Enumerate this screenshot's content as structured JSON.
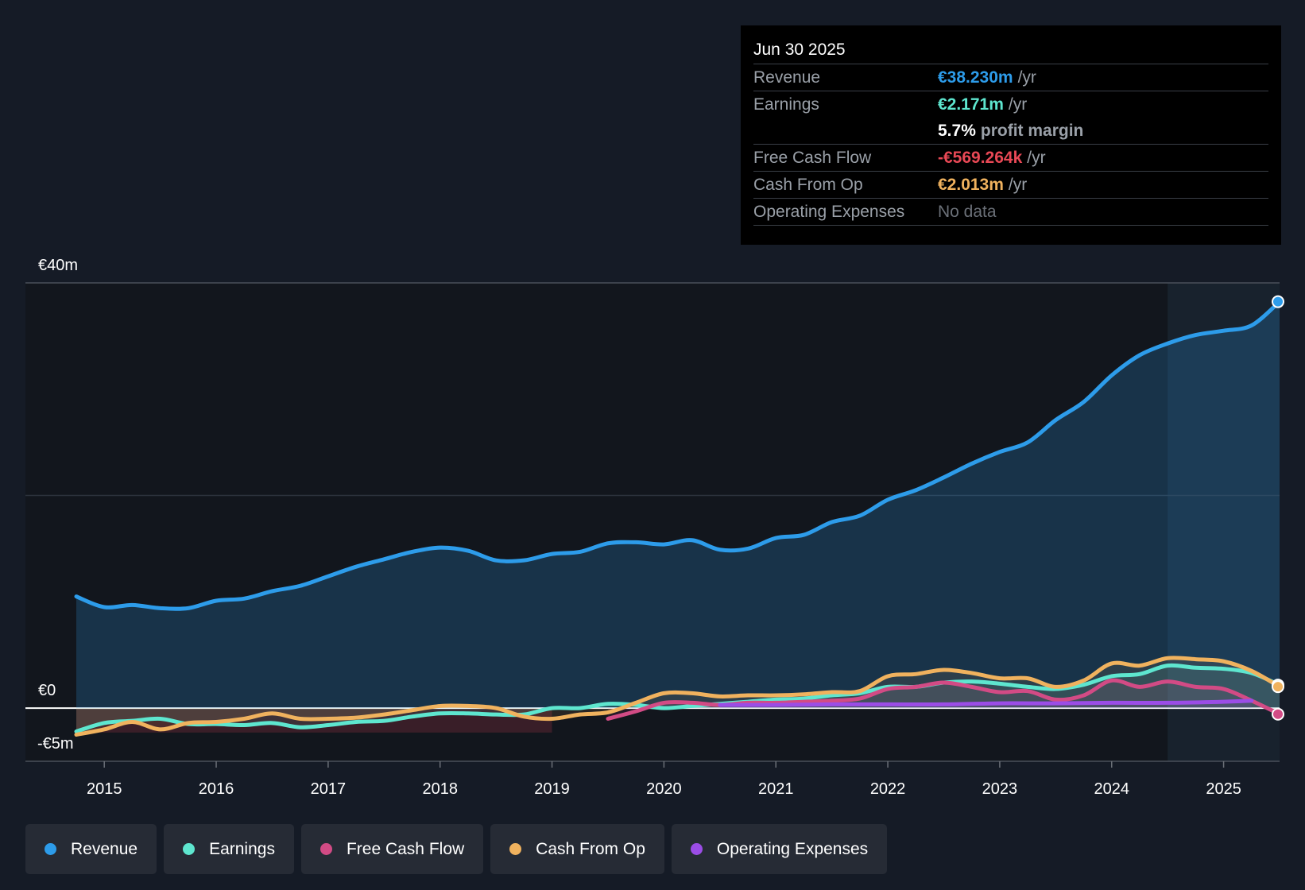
{
  "tooltip": {
    "date": "Jun 30 2025",
    "rows": [
      {
        "label": "Revenue",
        "value": "€38.230m",
        "unit": "/yr",
        "color": "#2d9cea"
      },
      {
        "label": "Earnings",
        "value": "€2.171m",
        "unit": "/yr",
        "color": "#5ee6cf"
      },
      {
        "label": "",
        "value": "5.7%",
        "unit": "profit margin",
        "color": "#ffffff"
      },
      {
        "label": "Free Cash Flow",
        "value": "-€569.264k",
        "unit": "/yr",
        "color": "#e84855"
      },
      {
        "label": "Cash From Op",
        "value": "€2.013m",
        "unit": "/yr",
        "color": "#f0b25e"
      },
      {
        "label": "Operating Expenses",
        "value": "No data",
        "unit": "",
        "color": "#6b7078"
      }
    ]
  },
  "legend": [
    {
      "label": "Revenue",
      "color": "#2d9cea"
    },
    {
      "label": "Earnings",
      "color": "#5ee6cf"
    },
    {
      "label": "Free Cash Flow",
      "color": "#d24b85"
    },
    {
      "label": "Cash From Op",
      "color": "#f0b25e"
    },
    {
      "label": "Operating Expenses",
      "color": "#9b4de6"
    }
  ],
  "chart_data": {
    "type": "area",
    "title": "",
    "xlabel": "",
    "ylabel": "",
    "y_axis_labels": [
      "€40m",
      "€0",
      "-€5m"
    ],
    "ylim": [
      -5,
      40
    ],
    "xlim": [
      2014.75,
      2025.5
    ],
    "x_ticks": [
      2015,
      2016,
      2017,
      2018,
      2019,
      2020,
      2021,
      2022,
      2023,
      2024,
      2025
    ],
    "x_tick_labels": [
      "2015",
      "2016",
      "2017",
      "2018",
      "2019",
      "2020",
      "2021",
      "2022",
      "2023",
      "2024",
      "2025"
    ],
    "highlight_start": 2024.5,
    "series": [
      {
        "name": "Revenue",
        "color": "#2d9cea",
        "fill": true,
        "points": [
          [
            2014.75,
            10.5
          ],
          [
            2015.0,
            9.5
          ],
          [
            2015.25,
            9.7
          ],
          [
            2015.5,
            9.4
          ],
          [
            2015.75,
            9.4
          ],
          [
            2016.0,
            10.1
          ],
          [
            2016.25,
            10.3
          ],
          [
            2016.5,
            11.0
          ],
          [
            2016.75,
            11.5
          ],
          [
            2017.0,
            12.4
          ],
          [
            2017.25,
            13.3
          ],
          [
            2017.5,
            14.0
          ],
          [
            2017.75,
            14.7
          ],
          [
            2018.0,
            15.1
          ],
          [
            2018.25,
            14.8
          ],
          [
            2018.5,
            13.9
          ],
          [
            2018.75,
            13.9
          ],
          [
            2019.0,
            14.5
          ],
          [
            2019.25,
            14.7
          ],
          [
            2019.5,
            15.5
          ],
          [
            2019.75,
            15.6
          ],
          [
            2020.0,
            15.4
          ],
          [
            2020.25,
            15.8
          ],
          [
            2020.5,
            14.9
          ],
          [
            2020.75,
            15.0
          ],
          [
            2021.0,
            16.0
          ],
          [
            2021.25,
            16.3
          ],
          [
            2021.5,
            17.5
          ],
          [
            2021.75,
            18.1
          ],
          [
            2022.0,
            19.6
          ],
          [
            2022.25,
            20.5
          ],
          [
            2022.5,
            21.7
          ],
          [
            2022.75,
            23.0
          ],
          [
            2023.0,
            24.1
          ],
          [
            2023.25,
            25.0
          ],
          [
            2023.5,
            27.1
          ],
          [
            2023.75,
            28.8
          ],
          [
            2024.0,
            31.3
          ],
          [
            2024.25,
            33.2
          ],
          [
            2024.5,
            34.3
          ],
          [
            2024.75,
            35.1
          ],
          [
            2025.0,
            35.5
          ],
          [
            2025.25,
            36.0
          ],
          [
            2025.5,
            38.23
          ]
        ]
      },
      {
        "name": "Earnings",
        "color": "#5ee6cf",
        "fill": false,
        "points": [
          [
            2014.75,
            -2.2
          ],
          [
            2015.0,
            -1.4
          ],
          [
            2015.25,
            -1.2
          ],
          [
            2015.5,
            -1.0
          ],
          [
            2015.75,
            -1.5
          ],
          [
            2016.0,
            -1.5
          ],
          [
            2016.25,
            -1.6
          ],
          [
            2016.5,
            -1.4
          ],
          [
            2016.75,
            -1.8
          ],
          [
            2017.0,
            -1.6
          ],
          [
            2017.25,
            -1.3
          ],
          [
            2017.5,
            -1.2
          ],
          [
            2017.75,
            -0.8
          ],
          [
            2018.0,
            -0.5
          ],
          [
            2018.25,
            -0.5
          ],
          [
            2018.5,
            -0.6
          ],
          [
            2018.75,
            -0.6
          ],
          [
            2019.0,
            0.0
          ],
          [
            2019.25,
            0.0
          ],
          [
            2019.5,
            0.4
          ],
          [
            2019.75,
            0.3
          ],
          [
            2020.0,
            0.0
          ],
          [
            2020.25,
            0.2
          ],
          [
            2020.5,
            0.4
          ],
          [
            2020.75,
            0.6
          ],
          [
            2021.0,
            0.8
          ],
          [
            2021.25,
            0.9
          ],
          [
            2021.5,
            1.2
          ],
          [
            2021.75,
            1.4
          ],
          [
            2022.0,
            2.0
          ],
          [
            2022.25,
            2.0
          ],
          [
            2022.5,
            2.4
          ],
          [
            2022.75,
            2.5
          ],
          [
            2023.0,
            2.3
          ],
          [
            2023.25,
            2.0
          ],
          [
            2023.5,
            1.8
          ],
          [
            2023.75,
            2.2
          ],
          [
            2024.0,
            3.0
          ],
          [
            2024.25,
            3.2
          ],
          [
            2024.5,
            4.0
          ],
          [
            2024.75,
            3.8
          ],
          [
            2025.0,
            3.7
          ],
          [
            2025.25,
            3.3
          ],
          [
            2025.5,
            2.171
          ]
        ]
      },
      {
        "name": "Free Cash Flow",
        "color": "#d24b85",
        "fill": false,
        "points": [
          [
            2019.5,
            -1.0
          ],
          [
            2019.75,
            -0.3
          ],
          [
            2020.0,
            0.5
          ],
          [
            2020.25,
            0.5
          ],
          [
            2020.5,
            0.3
          ],
          [
            2020.75,
            0.5
          ],
          [
            2021.0,
            0.5
          ],
          [
            2021.25,
            0.6
          ],
          [
            2021.5,
            0.7
          ],
          [
            2021.75,
            0.9
          ],
          [
            2022.0,
            1.8
          ],
          [
            2022.25,
            2.0
          ],
          [
            2022.5,
            2.4
          ],
          [
            2022.75,
            2.0
          ],
          [
            2023.0,
            1.5
          ],
          [
            2023.25,
            1.6
          ],
          [
            2023.5,
            0.8
          ],
          [
            2023.75,
            1.2
          ],
          [
            2024.0,
            2.6
          ],
          [
            2024.25,
            2.0
          ],
          [
            2024.5,
            2.5
          ],
          [
            2024.75,
            2.0
          ],
          [
            2025.0,
            1.8
          ],
          [
            2025.25,
            0.7
          ],
          [
            2025.5,
            -0.569
          ]
        ]
      },
      {
        "name": "Cash From Op",
        "color": "#f0b25e",
        "fill": false,
        "points": [
          [
            2014.75,
            -2.5
          ],
          [
            2015.0,
            -2.0
          ],
          [
            2015.25,
            -1.3
          ],
          [
            2015.5,
            -2.0
          ],
          [
            2015.75,
            -1.4
          ],
          [
            2016.0,
            -1.3
          ],
          [
            2016.25,
            -1.0
          ],
          [
            2016.5,
            -0.5
          ],
          [
            2016.75,
            -1.0
          ],
          [
            2017.0,
            -1.0
          ],
          [
            2017.25,
            -0.9
          ],
          [
            2017.5,
            -0.6
          ],
          [
            2017.75,
            -0.2
          ],
          [
            2018.0,
            0.2
          ],
          [
            2018.25,
            0.2
          ],
          [
            2018.5,
            0.0
          ],
          [
            2018.75,
            -0.8
          ],
          [
            2019.0,
            -1.0
          ],
          [
            2019.25,
            -0.6
          ],
          [
            2019.5,
            -0.4
          ],
          [
            2019.75,
            0.5
          ],
          [
            2020.0,
            1.4
          ],
          [
            2020.25,
            1.4
          ],
          [
            2020.5,
            1.1
          ],
          [
            2020.75,
            1.2
          ],
          [
            2021.0,
            1.2
          ],
          [
            2021.25,
            1.3
          ],
          [
            2021.5,
            1.5
          ],
          [
            2021.75,
            1.6
          ],
          [
            2022.0,
            3.0
          ],
          [
            2022.25,
            3.2
          ],
          [
            2022.5,
            3.6
          ],
          [
            2022.75,
            3.3
          ],
          [
            2023.0,
            2.8
          ],
          [
            2023.25,
            2.8
          ],
          [
            2023.5,
            2.0
          ],
          [
            2023.75,
            2.6
          ],
          [
            2024.0,
            4.2
          ],
          [
            2024.25,
            4.0
          ],
          [
            2024.5,
            4.7
          ],
          [
            2024.75,
            4.6
          ],
          [
            2025.0,
            4.4
          ],
          [
            2025.25,
            3.5
          ],
          [
            2025.5,
            2.013
          ]
        ]
      },
      {
        "name": "Operating Expenses",
        "color": "#9b4de6",
        "fill": false,
        "points": [
          [
            2020.5,
            0.3
          ],
          [
            2021.0,
            0.3
          ],
          [
            2021.5,
            0.35
          ],
          [
            2022.0,
            0.35
          ],
          [
            2022.5,
            0.35
          ],
          [
            2023.0,
            0.45
          ],
          [
            2023.5,
            0.45
          ],
          [
            2024.0,
            0.5
          ],
          [
            2024.5,
            0.5
          ],
          [
            2025.0,
            0.6
          ],
          [
            2025.25,
            0.7
          ]
        ]
      }
    ]
  }
}
